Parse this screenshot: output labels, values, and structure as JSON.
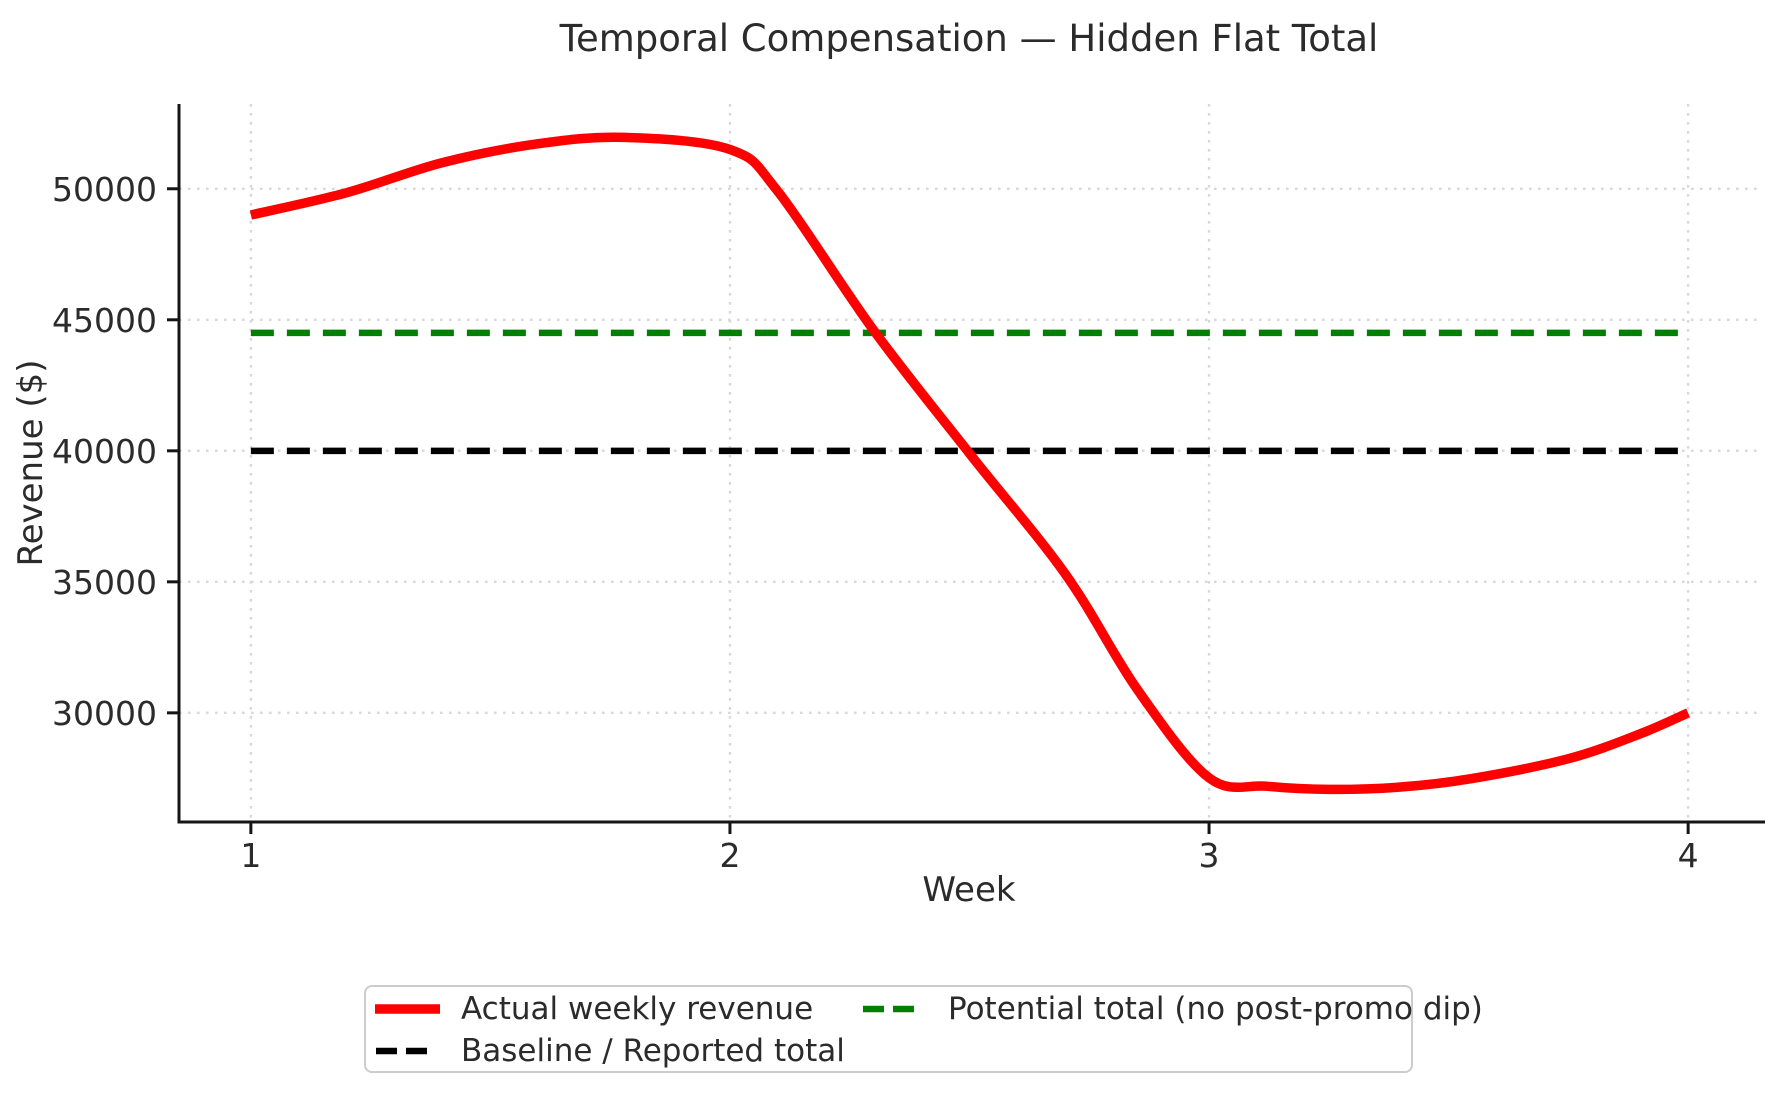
{
  "title": "Temporal Compensation — Hidden Flat Total",
  "chart_data": {
    "type": "line",
    "title": "Temporal Compensation — Hidden Flat Total",
    "xlabel": "Week",
    "ylabel": "Revenue ($)",
    "xlim": [
      0.85,
      4.15
    ],
    "ylim": [
      25835,
      53235
    ],
    "xticks": [
      1,
      2,
      3,
      4
    ],
    "yticks": [
      30000,
      35000,
      40000,
      45000,
      50000
    ],
    "grid": "dotted",
    "grid_color": "#d8d8d8",
    "background": "#ffffff",
    "legend_position": "below-axes-center",
    "categories_label": "Week",
    "series": [
      {
        "name": "Actual weekly revenue",
        "type": "line",
        "style": "solid",
        "color": "#ff0000",
        "linewidth": 9.5,
        "x": [
          1,
          2,
          3,
          4
        ],
        "values": [
          49000,
          51500,
          27500,
          30000
        ],
        "smooth": true,
        "curve_samples": [
          [
            1.0,
            49000
          ],
          [
            1.2,
            49850
          ],
          [
            1.4,
            51000
          ],
          [
            1.6,
            51720
          ],
          [
            1.78,
            51960
          ],
          [
            2.0,
            51500
          ],
          [
            2.1,
            49900
          ],
          [
            2.3,
            44600
          ],
          [
            2.5,
            39900
          ],
          [
            2.7,
            35300
          ],
          [
            2.85,
            30900
          ],
          [
            3.0,
            27520
          ],
          [
            3.12,
            27200
          ],
          [
            3.25,
            27080
          ],
          [
            3.4,
            27170
          ],
          [
            3.55,
            27500
          ],
          [
            3.75,
            28250
          ],
          [
            3.9,
            29200
          ],
          [
            4.0,
            30000
          ]
        ]
      },
      {
        "name": "Baseline / Reported total",
        "type": "hline",
        "style": "dashed",
        "color": "#000000",
        "linewidth": 6.5,
        "value": 40000,
        "x_span": [
          1,
          4
        ]
      },
      {
        "name": "Potential total (no post-promo dip)",
        "type": "hline",
        "style": "dashed",
        "color": "#008000",
        "linewidth": 6.5,
        "value": 44500,
        "x_span": [
          1,
          4
        ]
      }
    ]
  }
}
